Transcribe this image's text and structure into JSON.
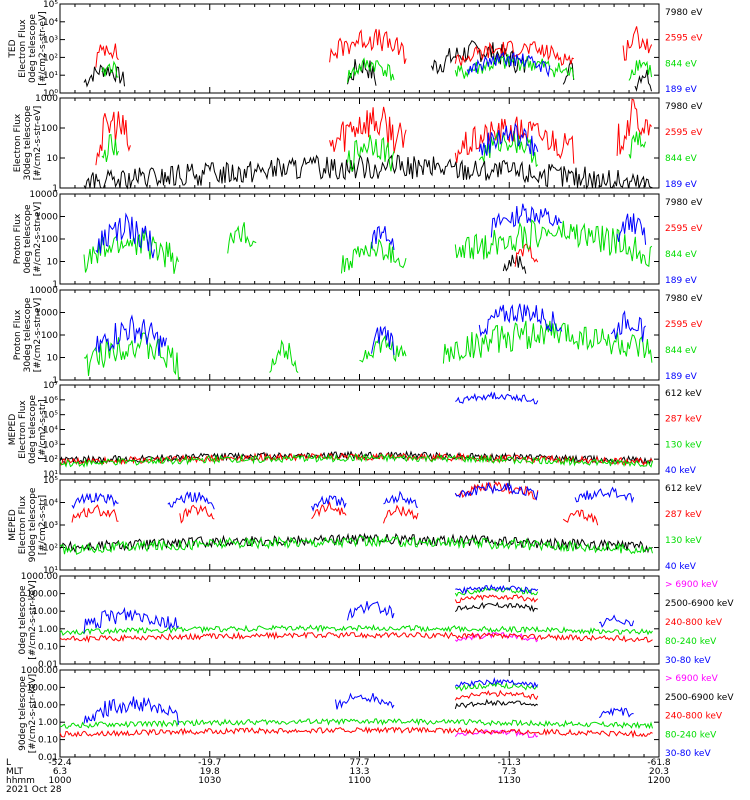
{
  "chart_data": [
    {
      "type": "line",
      "ylabel": [
        "TED",
        "Electron Flux",
        "0deg telescope",
        "[#/cm2-s-str-eV]"
      ],
      "yscale": "log",
      "ylim": [
        1,
        100000
      ],
      "yticks": [
        "10⁰",
        "10¹",
        "10²",
        "10³",
        "10⁴",
        "10⁵"
      ],
      "series": [
        {
          "name": "7980 eV",
          "color": "#000000",
          "segments": [
            [
              0.04,
              0.11,
              1.2,
              0.6
            ],
            [
              0.48,
              0.53,
              1.4,
              0.8
            ],
            [
              0.62,
              0.78,
              2.2,
              0.8
            ],
            [
              0.84,
              0.86,
              1.4,
              0.6
            ],
            [
              0.96,
              0.99,
              1.0,
              0.6
            ]
          ]
        },
        {
          "name": "2595 eV",
          "color": "#ff0000",
          "segments": [
            [
              0.06,
              0.1,
              2.5,
              0.7
            ],
            [
              0.45,
              0.58,
              2.9,
              0.8
            ],
            [
              0.66,
              0.86,
              2.4,
              0.6
            ],
            [
              0.94,
              0.99,
              3.0,
              0.8
            ]
          ]
        },
        {
          "name": "844 eV",
          "color": "#00dd00",
          "segments": [
            [
              0.07,
              0.1,
              1.4,
              0.5
            ],
            [
              0.48,
              0.56,
              1.5,
              0.6
            ],
            [
              0.66,
              0.86,
              1.6,
              0.6
            ],
            [
              0.95,
              0.99,
              1.6,
              0.6
            ]
          ]
        },
        {
          "name": "189 eV",
          "color": "#0000ff",
          "segments": [
            [
              0.68,
              0.82,
              1.8,
              0.5
            ]
          ]
        }
      ]
    },
    {
      "type": "line",
      "ylabel": [
        "Electron Flux",
        "30deg telescope",
        "[#/cm2-s-str-eV]"
      ],
      "yscale": "log",
      "ylim": [
        1,
        1000
      ],
      "yticks": [
        "1",
        "10",
        "100",
        "1000"
      ],
      "series": [
        {
          "name": "7980 eV",
          "color": "#000000",
          "segments": [
            [
              0.04,
              0.99,
              0.6,
              0.5
            ]
          ]
        },
        {
          "name": "2595 eV",
          "color": "#ff0000",
          "segments": [
            [
              0.06,
              0.12,
              2.0,
              0.8
            ],
            [
              0.45,
              0.58,
              2.1,
              0.8
            ],
            [
              0.66,
              0.86,
              1.8,
              0.6
            ],
            [
              0.93,
              0.99,
              2.2,
              0.8
            ]
          ]
        },
        {
          "name": "844 eV",
          "color": "#00dd00",
          "segments": [
            [
              0.07,
              0.1,
              1.3,
              0.5
            ],
            [
              0.48,
              0.56,
              1.4,
              0.6
            ],
            [
              0.7,
              0.8,
              1.5,
              0.5
            ],
            [
              0.95,
              0.98,
              1.5,
              0.6
            ]
          ]
        },
        {
          "name": "189 eV",
          "color": "#0000ff",
          "segments": [
            [
              0.7,
              0.8,
              1.7,
              0.5
            ]
          ]
        }
      ]
    },
    {
      "type": "line",
      "ylabel": [
        "Proton Flux",
        "0deg telescope",
        "[#/cm2-s-str-eV]"
      ],
      "yscale": "log",
      "ylim": [
        1,
        10000
      ],
      "yticks": [
        "1",
        "10",
        "100",
        "1000",
        "10000"
      ],
      "series": [
        {
          "name": "7980 eV",
          "color": "#000000",
          "segments": [
            [
              0.74,
              0.78,
              1.0,
              0.4
            ]
          ]
        },
        {
          "name": "2595 eV",
          "color": "#ff0000",
          "segments": [
            [
              0.76,
              0.8,
              1.4,
              0.4
            ]
          ]
        },
        {
          "name": "844 eV",
          "color": "#00dd00",
          "segments": [
            [
              0.04,
              0.2,
              1.7,
              0.8
            ],
            [
              0.28,
              0.33,
              2.2,
              0.6
            ],
            [
              0.47,
              0.58,
              1.4,
              0.6
            ],
            [
              0.66,
              0.99,
              2.1,
              0.8
            ]
          ]
        },
        {
          "name": "189 eV",
          "color": "#0000ff",
          "segments": [
            [
              0.06,
              0.16,
              2.3,
              0.8
            ],
            [
              0.52,
              0.56,
              2.3,
              0.6
            ],
            [
              0.72,
              0.84,
              3.0,
              0.6
            ],
            [
              0.93,
              0.98,
              2.6,
              0.6
            ]
          ]
        }
      ]
    },
    {
      "type": "line",
      "ylabel": [
        "Proton Flux",
        "30deg telescope",
        "[#/cm2-s-str-eV]"
      ],
      "yscale": "log",
      "ylim": [
        1,
        10000
      ],
      "yticks": [
        "1",
        "10",
        "100",
        "1000",
        "10000"
      ],
      "series": [
        {
          "name": "7980 eV",
          "color": "#000000",
          "segments": []
        },
        {
          "name": "2595 eV",
          "color": "#ff0000",
          "segments": []
        },
        {
          "name": "844 eV",
          "color": "#00dd00",
          "segments": [
            [
              0.04,
              0.2,
              1.4,
              0.8
            ],
            [
              0.35,
              0.4,
              1.2,
              0.6
            ],
            [
              0.5,
              0.58,
              1.4,
              0.6
            ],
            [
              0.64,
              0.99,
              1.9,
              0.8
            ]
          ]
        },
        {
          "name": "189 eV",
          "color": "#0000ff",
          "segments": [
            [
              0.06,
              0.18,
              2.1,
              0.8
            ],
            [
              0.52,
              0.56,
              2.0,
              0.6
            ],
            [
              0.7,
              0.84,
              2.9,
              0.6
            ],
            [
              0.92,
              0.98,
              2.5,
              0.6
            ]
          ]
        }
      ]
    },
    {
      "type": "line",
      "ylabel": [
        "MEPED",
        "Electron Flux",
        "0deg telescope",
        "[#/cm2-s-str]"
      ],
      "yscale": "log",
      "ylim": [
        10,
        10000000
      ],
      "yticks": [
        "10¹",
        "10²",
        "10³",
        "10⁴",
        "10⁵",
        "10⁶",
        "10⁷"
      ],
      "series": [
        {
          "name": "612 keV",
          "color": "#000000",
          "segments": [
            [
              0.0,
              0.99,
              2.2,
              0.3
            ]
          ]
        },
        {
          "name": "287 keV",
          "color": "#ff0000",
          "segments": [
            [
              0.0,
              0.99,
              2.1,
              0.3
            ]
          ]
        },
        {
          "name": "130 keV",
          "color": "#00dd00",
          "segments": [
            [
              0.0,
              0.99,
              2.0,
              0.3
            ]
          ]
        },
        {
          "name": "40 keV",
          "color": "#0000ff",
          "segments": [
            [
              0.66,
              0.8,
              6.2,
              0.3
            ]
          ]
        }
      ]
    },
    {
      "type": "line",
      "ylabel": [
        "MEPED",
        "Electron Flux",
        "90deg telescope",
        "[#/cm2-s-str]"
      ],
      "yscale": "log",
      "ylim": [
        10,
        100000
      ],
      "yticks": [
        "10¹",
        "10²",
        "10³",
        "10⁴",
        "10⁵"
      ],
      "series": [
        {
          "name": "612 keV",
          "color": "#000000",
          "segments": [
            [
              0.0,
              0.99,
              2.3,
              0.3
            ]
          ]
        },
        {
          "name": "287 keV",
          "color": "#ff0000",
          "segments": [
            [
              0.02,
              0.1,
              3.6,
              0.3
            ],
            [
              0.2,
              0.26,
              3.6,
              0.3
            ],
            [
              0.42,
              0.48,
              3.7,
              0.3
            ],
            [
              0.54,
              0.6,
              3.6,
              0.3
            ],
            [
              0.66,
              0.8,
              4.6,
              0.3
            ],
            [
              0.84,
              0.9,
              3.4,
              0.3
            ]
          ]
        },
        {
          "name": "130 keV",
          "color": "#00dd00",
          "segments": [
            [
              0.0,
              0.99,
              2.2,
              0.3
            ]
          ]
        },
        {
          "name": "40 keV",
          "color": "#0000ff",
          "segments": [
            [
              0.02,
              0.1,
              4.2,
              0.3
            ],
            [
              0.18,
              0.26,
              4.2,
              0.3
            ],
            [
              0.42,
              0.48,
              4.1,
              0.3
            ],
            [
              0.54,
              0.6,
              4.2,
              0.3
            ],
            [
              0.66,
              0.8,
              4.6,
              0.3
            ],
            [
              0.86,
              0.96,
              4.4,
              0.3
            ]
          ]
        }
      ]
    },
    {
      "type": "line",
      "ylabel": [
        "0deg telescope",
        "[#/cm2-s-str-keV]"
      ],
      "yscale": "log",
      "ylim": [
        0.01,
        1000
      ],
      "yticks": [
        "0.01",
        "0.10",
        "1.00",
        "10.00",
        "100.00",
        "1000.00"
      ],
      "series": [
        {
          "name": "> 6900 keV",
          "color": "#ff00ff",
          "segments": [
            [
              0.66,
              0.8,
              -0.4,
              0.2
            ]
          ]
        },
        {
          "name": "2500-6900 keV",
          "color": "#000000",
          "segments": [
            [
              0.66,
              0.8,
              1.3,
              0.2
            ]
          ]
        },
        {
          "name": "240-800 keV",
          "color": "#ff0000",
          "segments": [
            [
              0.0,
              0.99,
              -0.4,
              0.2
            ],
            [
              0.66,
              0.8,
              1.8,
              0.2
            ]
          ]
        },
        {
          "name": "80-240 keV",
          "color": "#00dd00",
          "segments": [
            [
              0.0,
              0.99,
              0.0,
              0.2
            ],
            [
              0.66,
              0.8,
              2.2,
              0.2
            ]
          ]
        },
        {
          "name": "30-80 keV",
          "color": "#0000ff",
          "segments": [
            [
              0.04,
              0.2,
              0.7,
              0.6
            ],
            [
              0.48,
              0.56,
              1.2,
              0.4
            ],
            [
              0.66,
              0.8,
              2.3,
              0.2
            ],
            [
              0.9,
              0.96,
              0.5,
              0.3
            ]
          ]
        }
      ]
    },
    {
      "type": "line",
      "ylabel": [
        "90deg telescope",
        "[#/cm2-s-str-keV]"
      ],
      "yscale": "log",
      "ylim": [
        0.01,
        1000
      ],
      "yticks": [
        "0.01",
        "0.10",
        "1.00",
        "10.00",
        "100.00",
        "1000.00"
      ],
      "series": [
        {
          "name": "> 6900 keV",
          "color": "#ff00ff",
          "segments": [
            [
              0.66,
              0.8,
              -0.6,
              0.2
            ]
          ]
        },
        {
          "name": "2500-6900 keV",
          "color": "#000000",
          "segments": [
            [
              0.66,
              0.8,
              1.1,
              0.2
            ]
          ]
        },
        {
          "name": "240-800 keV",
          "color": "#ff0000",
          "segments": [
            [
              0.0,
              0.99,
              -0.5,
              0.2
            ],
            [
              0.66,
              0.8,
              1.6,
              0.2
            ]
          ]
        },
        {
          "name": "80-240 keV",
          "color": "#00dd00",
          "segments": [
            [
              0.0,
              0.99,
              0.0,
              0.2
            ],
            [
              0.66,
              0.8,
              2.1,
              0.2
            ]
          ]
        },
        {
          "name": "30-80 keV",
          "color": "#0000ff",
          "segments": [
            [
              0.04,
              0.2,
              0.9,
              0.6
            ],
            [
              0.46,
              0.56,
              1.4,
              0.4
            ],
            [
              0.66,
              0.8,
              2.3,
              0.2
            ],
            [
              0.9,
              0.96,
              0.6,
              0.3
            ]
          ]
        }
      ]
    }
  ],
  "x_axis": {
    "rows": [
      {
        "label": "L",
        "values": [
          "-52.4",
          "-19.7",
          "77.7",
          "-11.3",
          "-61.8"
        ]
      },
      {
        "label": "MLT",
        "values": [
          "6.3",
          "19.8",
          "13.3",
          "7.3",
          "20.3"
        ]
      },
      {
        "label": "hhmm",
        "values": [
          "1000",
          "1030",
          "1100",
          "1130",
          "1200"
        ]
      }
    ],
    "date": "2021 Oct 28"
  }
}
